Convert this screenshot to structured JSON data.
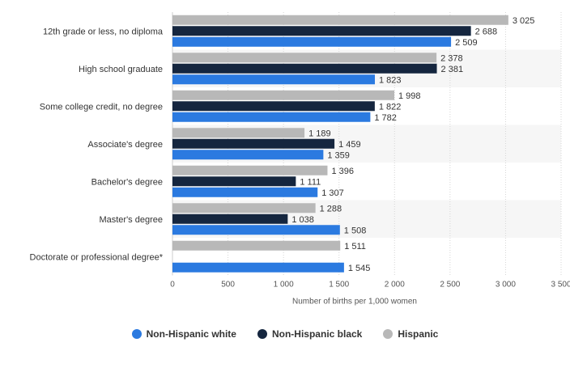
{
  "chart_data": {
    "type": "bar",
    "orientation": "horizontal",
    "title": "",
    "xlabel": "Number of births per 1,000 women",
    "ylabel": "",
    "xlim": [
      0,
      3500
    ],
    "x_ticks": [
      0,
      500,
      1000,
      1500,
      2000,
      2500,
      3000,
      3500
    ],
    "x_tick_labels": [
      "0",
      "500",
      "1 000",
      "1 500",
      "2 000",
      "2 500",
      "3 000",
      "3 500"
    ],
    "categories": [
      "12th grade or less, no diploma",
      "High school graduate",
      "Some college credit, no degree",
      "Associate's degree",
      "Bachelor's degree",
      "Master's degree",
      "Doctorate or professional degree*"
    ],
    "series": [
      {
        "name": "Hispanic",
        "color": "#b8b8b8",
        "values": [
          3025,
          2378,
          1998,
          1189,
          1396,
          1288,
          1511
        ],
        "labels": [
          "3 025",
          "2 378",
          "1 998",
          "1 189",
          "1 396",
          "1 288",
          "1 511"
        ]
      },
      {
        "name": "Non-Hispanic black",
        "color": "#15263f",
        "values": [
          2688,
          2381,
          1822,
          1459,
          1111,
          1038,
          null
        ],
        "labels": [
          "2 688",
          "2 381",
          "1 822",
          "1 459",
          "1 111",
          "1 038",
          null
        ]
      },
      {
        "name": "Non-Hispanic white",
        "color": "#2b7ae0",
        "values": [
          2509,
          1823,
          1782,
          1359,
          1307,
          1508,
          1545
        ],
        "labels": [
          "2 509",
          "1 823",
          "1 782",
          "1 359",
          "1 307",
          "1 508",
          "1 545"
        ]
      }
    ],
    "legend": [
      {
        "name": "Non-Hispanic white",
        "color": "#2b7ae0"
      },
      {
        "name": "Non-Hispanic black",
        "color": "#15263f"
      },
      {
        "name": "Hispanic",
        "color": "#b8b8b8"
      }
    ],
    "legend_position": "bottom-center",
    "grid": true
  }
}
